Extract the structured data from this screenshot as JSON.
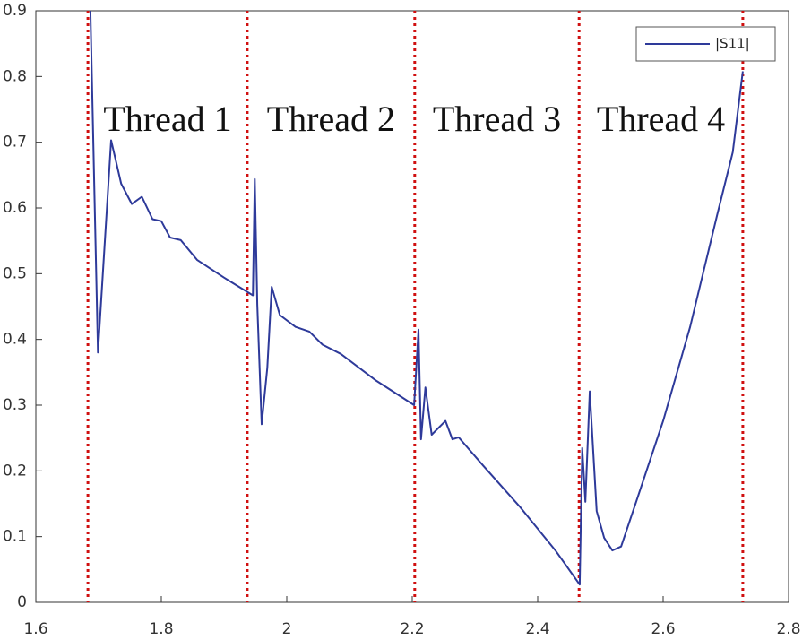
{
  "chart_data": {
    "type": "line",
    "x": [
      1.687,
      1.699,
      1.72,
      1.736,
      1.753,
      1.769,
      1.786,
      1.8,
      1.814,
      1.831,
      1.857,
      1.9,
      1.946,
      1.949,
      1.953,
      1.96,
      1.969,
      1.976,
      1.989,
      2.014,
      2.036,
      2.057,
      2.086,
      2.143,
      2.203,
      2.21,
      2.214,
      2.221,
      2.231,
      2.253,
      2.264,
      2.274,
      2.314,
      2.371,
      2.429,
      2.467,
      2.471,
      2.476,
      2.483,
      2.494,
      2.506,
      2.519,
      2.533,
      2.557,
      2.6,
      2.643,
      2.686,
      2.711,
      2.727
    ],
    "series": [
      {
        "name": "|S11|",
        "color": "#2e3a9a",
        "values": [
          0.9,
          0.38,
          0.703,
          0.637,
          0.606,
          0.617,
          0.583,
          0.58,
          0.555,
          0.551,
          0.521,
          0.494,
          0.467,
          0.644,
          0.453,
          0.271,
          0.357,
          0.48,
          0.437,
          0.419,
          0.412,
          0.392,
          0.378,
          0.337,
          0.3,
          0.415,
          0.248,
          0.327,
          0.255,
          0.276,
          0.248,
          0.251,
          0.207,
          0.146,
          0.078,
          0.027,
          0.235,
          0.153,
          0.321,
          0.139,
          0.098,
          0.079,
          0.085,
          0.153,
          0.276,
          0.419,
          0.589,
          0.685,
          0.808
        ]
      }
    ],
    "xlim": [
      1.6,
      2.8
    ],
    "xticks": [
      1.6,
      1.8,
      2,
      2.2,
      2.4,
      2.6,
      2.8
    ],
    "ylim": [
      0,
      0.9
    ],
    "yticks": [
      0,
      0.1,
      0.2,
      0.3,
      0.4,
      0.5,
      0.6,
      0.7,
      0.8,
      0.9
    ],
    "vlines": [
      1.683,
      1.937,
      2.204,
      2.466,
      2.727
    ],
    "vline_color": "#d01010",
    "annotations": [
      "Thread 1",
      "Thread 2",
      "Thread 3",
      "Thread 4"
    ],
    "legend": "upper right",
    "grid": false
  }
}
